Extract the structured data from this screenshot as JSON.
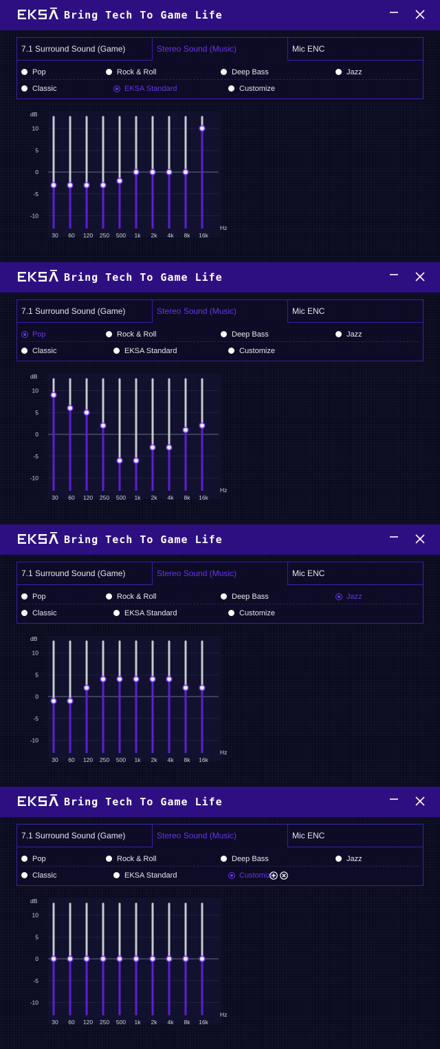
{
  "brand": {
    "tagline": "Bring Tech To Game Life"
  },
  "modes": [
    "7.1 Surround Sound (Game)",
    "Stereo Sound (Music)",
    "Mic ENC"
  ],
  "presets": [
    "Pop",
    "Rock & Roll",
    "Deep Bass",
    "Jazz",
    "Classic",
    "EKSA Standard",
    "Customize"
  ],
  "colors": {
    "titlebar": "#2d0f82",
    "accent": "#6a35e8",
    "slider_track": "#c8c8d2",
    "slider_fill": "#5a1fd6",
    "background": "#0b0b20"
  },
  "icons": {
    "minimize": "minimize-icon",
    "close": "close-icon",
    "add": "plus-circle-icon",
    "remove": "x-circle-icon"
  },
  "panels": [
    {
      "active_mode": 1,
      "selected_preset": 5,
      "show_customize_actions": false
    },
    {
      "active_mode": 1,
      "selected_preset": 0,
      "show_customize_actions": false
    },
    {
      "active_mode": 1,
      "selected_preset": 3,
      "show_customize_actions": false
    },
    {
      "active_mode": 1,
      "selected_preset": 6,
      "show_customize_actions": true
    }
  ],
  "chart_data": [
    {
      "type": "bar",
      "ylabel": "dB",
      "xlabel": "Hz",
      "ylim": [
        -12,
        12
      ],
      "yticks": [
        10,
        5,
        0,
        -5,
        -10
      ],
      "categories": [
        "30",
        "60",
        "120",
        "250",
        "500",
        "1k",
        "2k",
        "4k",
        "8k",
        "16k"
      ],
      "values": [
        -3,
        -3,
        -3,
        -3,
        -2,
        0,
        0,
        0,
        0,
        10
      ]
    },
    {
      "type": "bar",
      "ylabel": "dB",
      "xlabel": "Hz",
      "ylim": [
        -12,
        12
      ],
      "yticks": [
        10,
        5,
        0,
        -5,
        -10
      ],
      "categories": [
        "30",
        "60",
        "120",
        "250",
        "500",
        "1k",
        "2k",
        "4k",
        "8k",
        "16k"
      ],
      "values": [
        9,
        6,
        5,
        2,
        -6,
        -6,
        -3,
        -3,
        1,
        2
      ]
    },
    {
      "type": "bar",
      "ylabel": "dB",
      "xlabel": "Hz",
      "ylim": [
        -12,
        12
      ],
      "yticks": [
        10,
        5,
        0,
        -5,
        -10
      ],
      "categories": [
        "30",
        "60",
        "120",
        "250",
        "500",
        "1k",
        "2k",
        "4k",
        "8k",
        "16k"
      ],
      "values": [
        -1,
        -1,
        2,
        4,
        4,
        4,
        4,
        4,
        2,
        2
      ]
    },
    {
      "type": "bar",
      "ylabel": "dB",
      "xlabel": "Hz",
      "ylim": [
        -12,
        12
      ],
      "yticks": [
        10,
        5,
        0,
        -5,
        -10
      ],
      "categories": [
        "30",
        "60",
        "120",
        "250",
        "500",
        "1k",
        "2k",
        "4k",
        "8k",
        "16k"
      ],
      "values": [
        0,
        0,
        0,
        0,
        0,
        0,
        0,
        0,
        0,
        0
      ]
    }
  ]
}
